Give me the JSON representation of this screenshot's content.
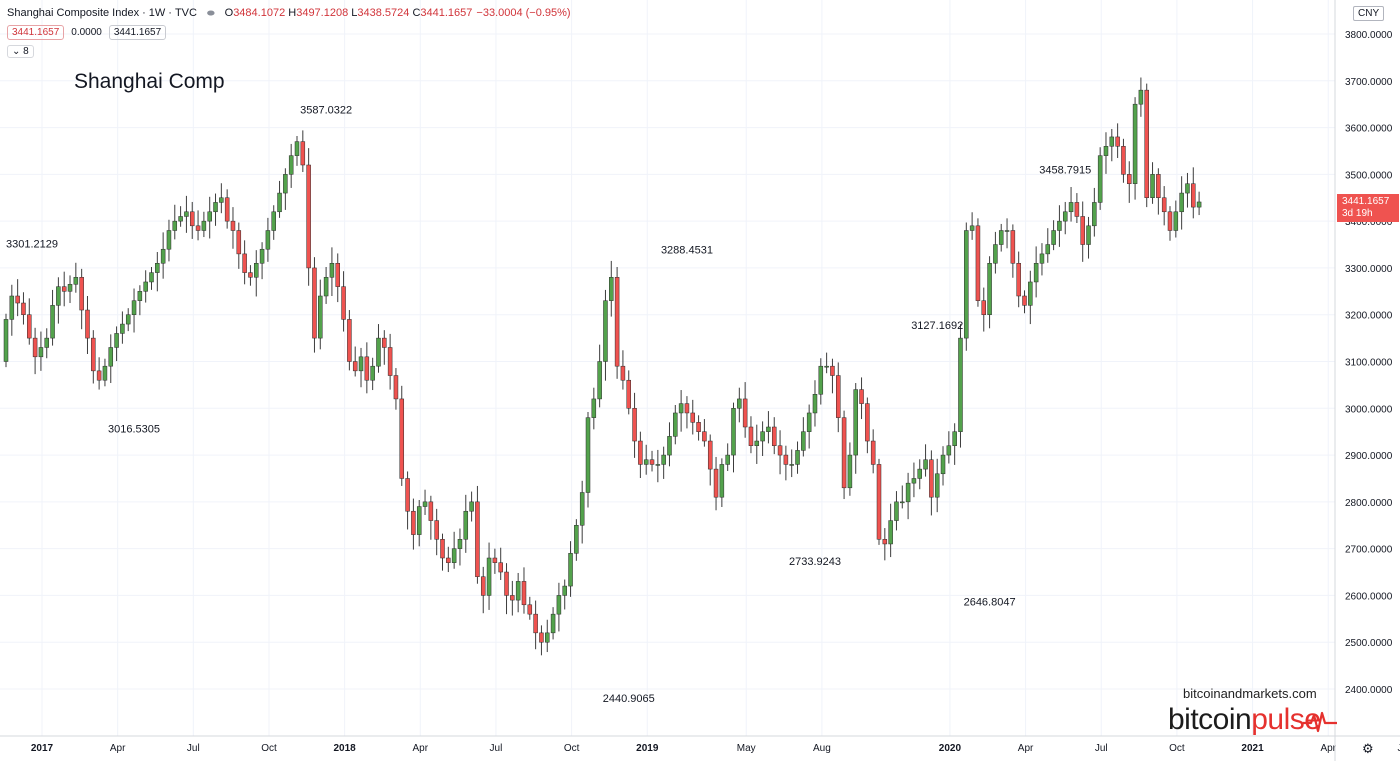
{
  "legend": {
    "symbol": "Shanghai Composite Index",
    "interval": "1W",
    "source": "TVC",
    "open_label": "O",
    "open": "3484.1072",
    "high_label": "H",
    "high": "3497.1208",
    "low_label": "L",
    "low": "3438.5724",
    "close_label": "C",
    "close": "3441.1657",
    "change": "−33.0004 (−0.95%)",
    "bid": "3441.1657",
    "spread": "0.0000",
    "ask": "3441.1657",
    "indicators_count": "8",
    "indicators_chevron": "⌄"
  },
  "title": "Shanghai Comp",
  "currency": "CNY",
  "last_price": {
    "value": "3441.1657",
    "countdown": "3d 19h"
  },
  "watermark": {
    "site": "bitcoinandmarkets.com",
    "brand_a": "bitcoin",
    "brand_b": "pulse"
  },
  "colors": {
    "up": "#53a24c",
    "down": "#ef5350",
    "wick": "#3c3c3c",
    "grid": "#f0f3fa",
    "axis_text": "#131722",
    "watermark_red": "#e5312e"
  },
  "icons": {
    "settings": "gear-icon",
    "pulse": "heartbeat-icon"
  },
  "chart_data": {
    "type": "candlestick",
    "title": "Shanghai Comp",
    "ylabel": "",
    "ylim": [
      2330,
      3820
    ],
    "y_ticks": [
      "3800.0000",
      "3700.0000",
      "3600.0000",
      "3500.0000",
      "3400.0000",
      "3300.0000",
      "3200.0000",
      "3100.0000",
      "3000.0000",
      "2900.0000",
      "2800.0000",
      "2700.0000",
      "2600.0000",
      "2500.0000",
      "2400.0000"
    ],
    "x_ticks": [
      {
        "label": "2017",
        "week": 0,
        "bold": true
      },
      {
        "label": "Apr",
        "week": 13
      },
      {
        "label": "Jul",
        "week": 26
      },
      {
        "label": "Oct",
        "week": 39
      },
      {
        "label": "2018",
        "week": 52,
        "bold": true
      },
      {
        "label": "Apr",
        "week": 65
      },
      {
        "label": "Jul",
        "week": 78
      },
      {
        "label": "Oct",
        "week": 91
      },
      {
        "label": "2019",
        "week": 104,
        "bold": true
      },
      {
        "label": "May",
        "week": 121
      },
      {
        "label": "Aug",
        "week": 134
      },
      {
        "label": "2020",
        "week": 156,
        "bold": true
      },
      {
        "label": "Apr",
        "week": 169
      },
      {
        "label": "Jul",
        "week": 182
      },
      {
        "label": "Oct",
        "week": 195
      },
      {
        "label": "2021",
        "week": 208,
        "bold": true
      },
      {
        "label": "Apr",
        "week": 221
      },
      {
        "label": "Jul",
        "week": 234
      }
    ],
    "annotations": [
      {
        "text": "3301.2129",
        "week": 0,
        "price": 3301.2,
        "pos": "above"
      },
      {
        "text": "3016.5305",
        "week": 22,
        "price": 3016.5,
        "pos": "below"
      },
      {
        "text": "3587.0322",
        "week": 55,
        "price": 3587.0,
        "pos": "above"
      },
      {
        "text": "2440.9065",
        "week": 107,
        "price": 2440.9,
        "pos": "below"
      },
      {
        "text": "3288.4531",
        "week": 117,
        "price": 3288.5,
        "pos": "above"
      },
      {
        "text": "2733.9243",
        "week": 139,
        "price": 2733.9,
        "pos": "below"
      },
      {
        "text": "3127.1692",
        "week": 160,
        "price": 3127.2,
        "pos": "above"
      },
      {
        "text": "2646.8047",
        "week": 169,
        "price": 2646.8,
        "pos": "below"
      },
      {
        "text": "3458.7915",
        "week": 182,
        "price": 3458.8,
        "pos": "above"
      }
    ],
    "closes": [
      3190,
      3240,
      3225,
      3200,
      3150,
      3110,
      3130,
      3150,
      3220,
      3260,
      3250,
      3265,
      3280,
      3210,
      3150,
      3080,
      3060,
      3090,
      3130,
      3160,
      3180,
      3200,
      3230,
      3250,
      3270,
      3290,
      3310,
      3340,
      3380,
      3400,
      3410,
      3420,
      3390,
      3380,
      3400,
      3420,
      3440,
      3450,
      3400,
      3380,
      3330,
      3290,
      3280,
      3310,
      3340,
      3380,
      3420,
      3460,
      3500,
      3540,
      3570,
      3520,
      3300,
      3150,
      3240,
      3280,
      3310,
      3260,
      3190,
      3100,
      3080,
      3110,
      3060,
      3090,
      3150,
      3130,
      3070,
      3020,
      2850,
      2780,
      2730,
      2790,
      2800,
      2760,
      2720,
      2680,
      2670,
      2700,
      2720,
      2780,
      2800,
      2640,
      2600,
      2680,
      2670,
      2650,
      2600,
      2590,
      2630,
      2580,
      2560,
      2520,
      2500,
      2520,
      2560,
      2600,
      2620,
      2690,
      2750,
      2820,
      2980,
      3020,
      3100,
      3230,
      3280,
      3090,
      3060,
      3000,
      2930,
      2880,
      2890,
      2880,
      2880,
      2900,
      2940,
      2990,
      3010,
      2990,
      2970,
      2950,
      2930,
      2870,
      2810,
      2880,
      2900,
      3000,
      3020,
      2960,
      2920,
      2930,
      2950,
      2960,
      2920,
      2900,
      2880,
      2880,
      2910,
      2950,
      2990,
      3030,
      3090,
      3090,
      3070,
      2980,
      2830,
      2900,
      3040,
      3010,
      2930,
      2880,
      2720,
      2710,
      2760,
      2800,
      2800,
      2840,
      2850,
      2870,
      2890,
      2810,
      2860,
      2900,
      2920,
      2950,
      3150,
      3380,
      3390,
      3230,
      3200,
      3310,
      3350,
      3380,
      3380,
      3310,
      3240,
      3220,
      3270,
      3310,
      3330,
      3350,
      3380,
      3400,
      3420,
      3440,
      3410,
      3350,
      3390,
      3440,
      3540,
      3560,
      3580,
      3560,
      3500,
      3480,
      3650,
      3680,
      3450,
      3500,
      3450,
      3420,
      3380,
      3420,
      3460,
      3480,
      3430,
      3441
    ],
    "open": 3100
  }
}
